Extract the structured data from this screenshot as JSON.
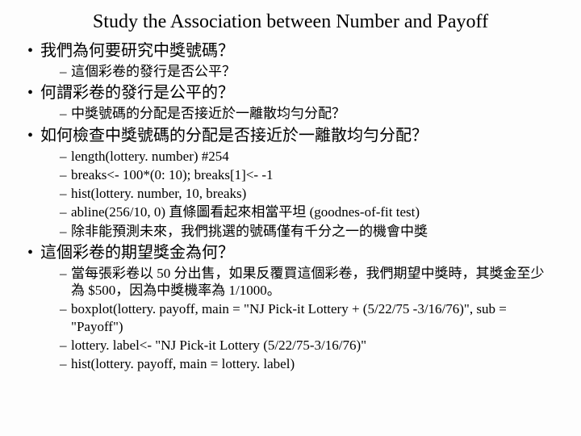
{
  "title": "Study the Association between Number and Payoff",
  "items": [
    {
      "text": "我們為何要研究中獎號碼？",
      "sub": [
        "這個彩卷的發行是否公平？"
      ]
    },
    {
      "text": "何謂彩卷的發行是公平的？",
      "sub": [
        "中獎號碼的分配是否接近於一離散均勻分配？"
      ]
    },
    {
      "text": "如何檢查中獎號碼的分配是否接近於一離散均勻分配？",
      "sub": [
        "length(lottery. number)    #254",
        "breaks<- 100*(0: 10); breaks[1]<- -1",
        "hist(lottery. number, 10, breaks)",
        "abline(256/10, 0) 直條圖看起來相當平坦     (goodnes-of-fit test)",
        "除非能預測未來，我們挑選的號碼僅有千分之一的機會中獎"
      ]
    },
    {
      "text": "這個彩卷的期望獎金為何？",
      "sub": [
        "當每張彩卷以   50 分出售，如果反覆買這個彩卷，我們期望中獎時，其獎金至少為   $500，因為中獎機率為   1/1000。",
        "boxplot(lottery. payoff, main = \"NJ Pick-it Lottery + (5/22/75 -3/16/76)\", sub = \"Payoff\")",
        "lottery. label<- \"NJ Pick-it Lottery (5/22/75-3/16/76)\"",
        "hist(lottery. payoff, main = lottery. label)"
      ]
    }
  ]
}
